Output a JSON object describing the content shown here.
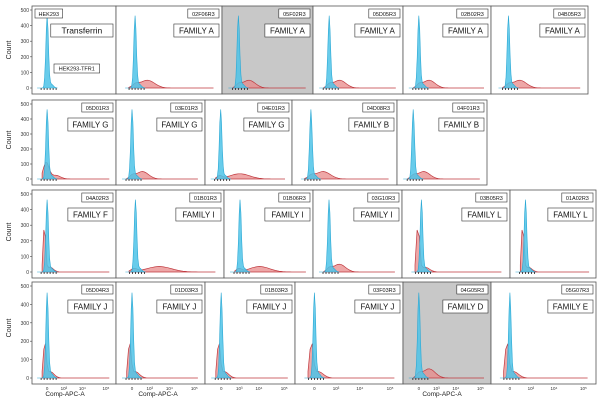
{
  "figure": {
    "y_axis_label": "Count",
    "x_axis_label": "Comp-APC-A",
    "x_tick_labels": [
      "-10³",
      "0",
      "10³",
      "10⁴",
      "10⁵"
    ],
    "colors": {
      "control_fill": "#4ec3e8",
      "control_stroke": "#2aa8d4",
      "sample_fill": "#e88a8a",
      "sample_stroke": "#c0393f",
      "panel_border": "#555555",
      "highlight_bg": "#c8c8c8"
    }
  },
  "chart_data": [
    {
      "type": "area",
      "row": 1,
      "col": 1,
      "sample_id": "HEK293",
      "label": "Transferrin",
      "secondary_label": "HEK293-TFR1",
      "ylim": [
        0,
        500
      ],
      "yticks": [
        0,
        100,
        200,
        300,
        400,
        500
      ],
      "control_peak_x": 0,
      "sample_profile": "none",
      "highlighted": false
    },
    {
      "type": "area",
      "row": 1,
      "col": 2,
      "sample_id": "02F06R3",
      "label": "FAMILY A",
      "ylim": [
        0,
        500
      ],
      "control_peak_x": 0,
      "sample_profile": "low_broad",
      "highlighted": false
    },
    {
      "type": "area",
      "row": 1,
      "col": 3,
      "sample_id": "05F02R3",
      "label": "FAMILY A",
      "ylim": [
        0,
        500
      ],
      "control_peak_x": 0,
      "sample_profile": "low_broad",
      "highlighted": true
    },
    {
      "type": "area",
      "row": 1,
      "col": 4,
      "sample_id": "05D05R3",
      "label": "FAMILY A",
      "ylim": [
        0,
        500
      ],
      "control_peak_x": 0,
      "sample_profile": "low_broad",
      "highlighted": false
    },
    {
      "type": "area",
      "row": 1,
      "col": 5,
      "sample_id": "02B02R3",
      "label": "FAMILY A",
      "ylim": [
        0,
        500
      ],
      "control_peak_x": 0,
      "sample_profile": "low_broad",
      "highlighted": false
    },
    {
      "type": "area",
      "row": 1,
      "col": 6,
      "sample_id": "04B05R3",
      "label": "FAMILY A",
      "ylim": [
        0,
        500
      ],
      "control_peak_x": 0,
      "sample_profile": "low_broad",
      "highlighted": false
    },
    {
      "type": "area",
      "row": 2,
      "col": 1,
      "sample_id": "05D01R3",
      "label": "FAMILY G",
      "ylim": [
        0,
        500
      ],
      "yticks": [
        0,
        100,
        200,
        300,
        400,
        500
      ],
      "control_peak_x": 0,
      "sample_profile": "low_left",
      "highlighted": false
    },
    {
      "type": "area",
      "row": 2,
      "col": 2,
      "sample_id": "03E01R3",
      "label": "FAMILY G",
      "ylim": [
        0,
        500
      ],
      "control_peak_x": 0,
      "sample_profile": "low_broad",
      "highlighted": false
    },
    {
      "type": "area",
      "row": 2,
      "col": 3,
      "sample_id": "04E01R3",
      "label": "FAMILY G",
      "ylim": [
        0,
        500
      ],
      "control_peak_x": 0,
      "sample_profile": "low_wide",
      "highlighted": false
    },
    {
      "type": "area",
      "row": 2,
      "col": 4,
      "sample_id": "04D08R3",
      "label": "FAMILY B",
      "ylim": [
        0,
        500
      ],
      "control_peak_x": 0,
      "sample_profile": "low_broad",
      "highlighted": false
    },
    {
      "type": "area",
      "row": 2,
      "col": 5,
      "sample_id": "04F01R3",
      "label": "FAMILY B",
      "ylim": [
        0,
        500
      ],
      "control_peak_x": 0,
      "sample_profile": "low_broad",
      "highlighted": false
    },
    {
      "type": "area",
      "row": 3,
      "col": 1,
      "sample_id": "04A02R3",
      "label": "FAMILY F",
      "ylim": [
        0,
        500
      ],
      "yticks": [
        0,
        100,
        200,
        300,
        400,
        500
      ],
      "control_peak_x": 0,
      "sample_profile": "tall_overlap",
      "highlighted": false
    },
    {
      "type": "area",
      "row": 3,
      "col": 2,
      "sample_id": "01B01R3",
      "label": "FAMILY I",
      "ylim": [
        0,
        500
      ],
      "control_peak_x": 0,
      "sample_profile": "low_wide",
      "highlighted": false
    },
    {
      "type": "area",
      "row": 3,
      "col": 3,
      "sample_id": "01B06R3",
      "label": "FAMILY I",
      "ylim": [
        0,
        500
      ],
      "control_peak_x": 0,
      "sample_profile": "low_wide",
      "highlighted": false
    },
    {
      "type": "area",
      "row": 3,
      "col": 4,
      "sample_id": "03G10R3",
      "label": "FAMILY I",
      "ylim": [
        0,
        500
      ],
      "control_peak_x": 0,
      "sample_profile": "low_broad",
      "highlighted": false
    },
    {
      "type": "area",
      "row": 3,
      "col": 5,
      "sample_id": "03B05R3",
      "label": "FAMILY L",
      "ylim": [
        0,
        500
      ],
      "control_peak_x": 0,
      "sample_profile": "tall_overlap",
      "highlighted": false
    },
    {
      "type": "area",
      "row": 3,
      "col": 6,
      "sample_id": "01A02R3",
      "label": "FAMILY L",
      "ylim": [
        0,
        500
      ],
      "control_peak_x": 0,
      "sample_profile": "tall_overlap",
      "highlighted": false
    },
    {
      "type": "area",
      "row": 4,
      "col": 1,
      "sample_id": "05D04R3",
      "label": "FAMILY J",
      "ylim": [
        0,
        500
      ],
      "yticks": [
        0,
        100,
        200,
        300,
        400,
        500
      ],
      "control_peak_x": 0,
      "sample_profile": "mid_overlap",
      "highlighted": false
    },
    {
      "type": "area",
      "row": 4,
      "col": 2,
      "sample_id": "01D03R3",
      "label": "FAMILY J",
      "ylim": [
        0,
        500
      ],
      "control_peak_x": 0,
      "sample_profile": "mid_overlap",
      "highlighted": false
    },
    {
      "type": "area",
      "row": 4,
      "col": 3,
      "sample_id": "01B03R3",
      "label": "FAMILY J",
      "ylim": [
        0,
        500
      ],
      "control_peak_x": 0,
      "sample_profile": "mid_overlap",
      "highlighted": false
    },
    {
      "type": "area",
      "row": 4,
      "col": 4,
      "sample_id": "03F03R3",
      "label": "FAMILY J",
      "ylim": [
        0,
        500
      ],
      "control_peak_x": 0,
      "sample_profile": "mid_overlap",
      "highlighted": false
    },
    {
      "type": "area",
      "row": 4,
      "col": 5,
      "sample_id": "04G05R3",
      "label": "FAMILY D",
      "ylim": [
        0,
        500
      ],
      "control_peak_x": 0,
      "sample_profile": "low_broad",
      "highlighted": true
    },
    {
      "type": "area",
      "row": 4,
      "col": 6,
      "sample_id": "05G07R3",
      "label": "FAMILY E",
      "ylim": [
        0,
        500
      ],
      "control_peak_x": 0,
      "sample_profile": "mid_overlap",
      "highlighted": false
    }
  ]
}
